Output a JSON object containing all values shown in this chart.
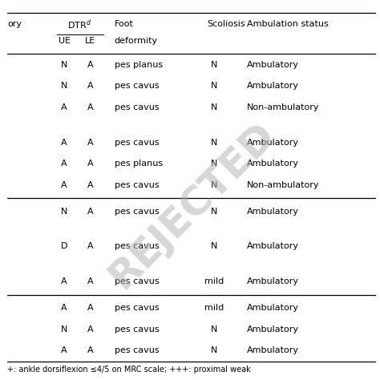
{
  "rows": [
    {
      "type": "data",
      "UE": "N",
      "LE": "A",
      "foot": "pes planus",
      "scoliosis": "N",
      "ambulation": "Ambulatory"
    },
    {
      "type": "data",
      "UE": "N",
      "LE": "A",
      "foot": "pes cavus",
      "scoliosis": "N",
      "ambulation": "Ambulatory"
    },
    {
      "type": "data",
      "UE": "A",
      "LE": "A",
      "foot": "pes cavus",
      "scoliosis": "N",
      "ambulation": "Non-ambulatory"
    },
    {
      "type": "blank"
    },
    {
      "type": "data",
      "UE": "A",
      "LE": "A",
      "foot": "pes cavus",
      "scoliosis": "N",
      "ambulation": "Ambulatory"
    },
    {
      "type": "data",
      "UE": "A",
      "LE": "A",
      "foot": "pes planus",
      "scoliosis": "N",
      "ambulation": "Ambulatory"
    },
    {
      "type": "data",
      "UE": "A",
      "LE": "A",
      "foot": "pes cavus",
      "scoliosis": "N",
      "ambulation": "Non-ambulatory"
    },
    {
      "type": "separator"
    },
    {
      "type": "data",
      "UE": "N",
      "LE": "A",
      "foot": "pes cavus",
      "scoliosis": "N",
      "ambulation": "Ambulatory"
    },
    {
      "type": "blank"
    },
    {
      "type": "data",
      "UE": "D",
      "LE": "A",
      "foot": "pes cavus",
      "scoliosis": "N",
      "ambulation": "Ambulatory"
    },
    {
      "type": "blank"
    },
    {
      "type": "data",
      "UE": "A",
      "LE": "A",
      "foot": "pes cavus",
      "scoliosis": "mild",
      "ambulation": "Ambulatory"
    },
    {
      "type": "separator"
    },
    {
      "type": "data",
      "UE": "A",
      "LE": "A",
      "foot": "pes cavus",
      "scoliosis": "mild",
      "ambulation": "Ambulatory"
    },
    {
      "type": "data",
      "UE": "N",
      "LE": "A",
      "foot": "pes cavus",
      "scoliosis": "N",
      "ambulation": "Ambulatory"
    },
    {
      "type": "data",
      "UE": "A",
      "LE": "A",
      "foot": "pes cavus",
      "scoliosis": "N",
      "ambulation": "Ambulatory"
    }
  ],
  "footer": "+: ankle dorsiflexion ≤4/5 on MRC scale; +++: proximal weak",
  "background_color": "#ffffff",
  "watermark_color": "#b0b0b0",
  "text_color": "#000000",
  "line_color": "#000000",
  "font_size": 8.0,
  "header_font_size": 8.0,
  "footer_font_size": 7.0,
  "col_ory": 0.0,
  "col_UE": 0.138,
  "col_LE": 0.21,
  "col_foot": 0.29,
  "col_scol": 0.54,
  "col_amb": 0.65
}
